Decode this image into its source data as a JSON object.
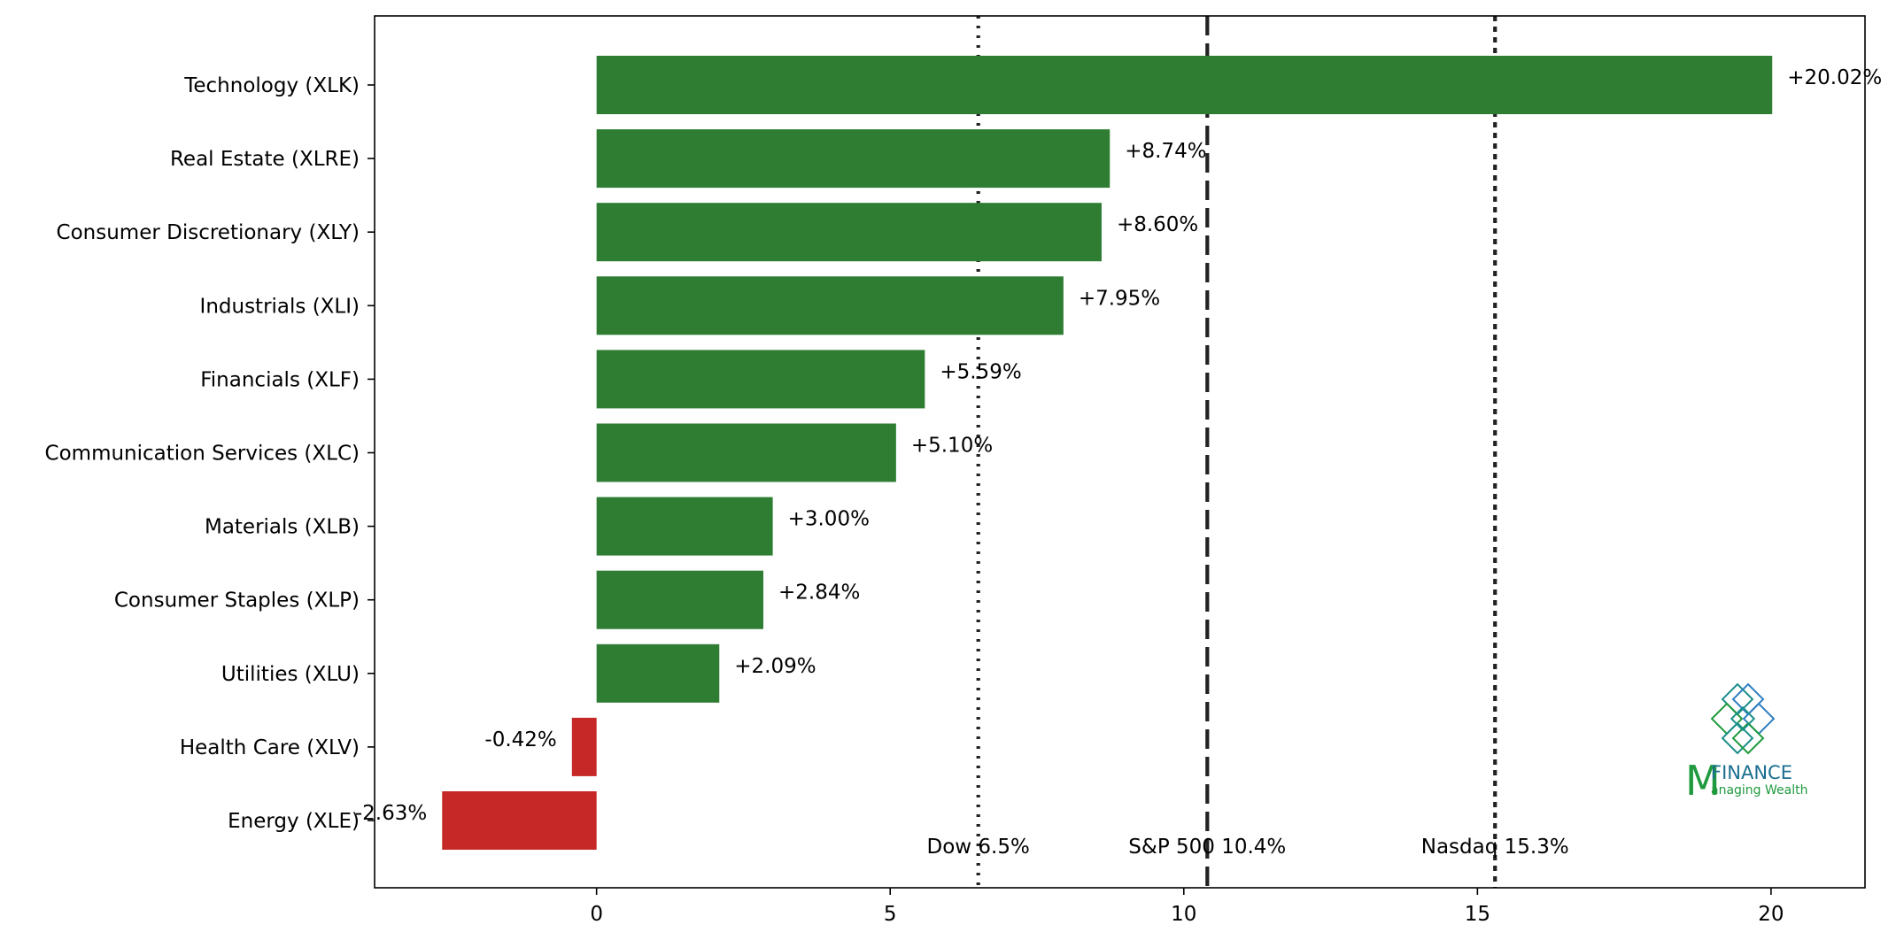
{
  "chart_data": {
    "type": "bar",
    "orientation": "horizontal",
    "categories": [
      "Technology (XLK)",
      "Real Estate (XLRE)",
      "Consumer Discretionary (XLY)",
      "Industrials (XLI)",
      "Financials (XLF)",
      "Communication Services (XLC)",
      "Materials (XLB)",
      "Consumer Staples (XLP)",
      "Utilities (XLU)",
      "Health Care (XLV)",
      "Energy (XLE)"
    ],
    "values": [
      20.02,
      8.74,
      8.6,
      7.95,
      5.59,
      5.1,
      3.0,
      2.84,
      2.09,
      -0.42,
      -2.63
    ],
    "data_labels": [
      "+20.02%",
      "+8.74%",
      "+8.60%",
      "+7.95%",
      "+5.59%",
      "+5.10%",
      "+3.00%",
      "+2.84%",
      "+2.09%",
      "-0.42%",
      "-2.63%"
    ],
    "xlim": [
      -3.78,
      21.6
    ],
    "xticks": [
      0,
      5,
      10,
      15,
      20
    ],
    "grid": false,
    "colors": {
      "positive": "#2e7d32",
      "negative": "#c62828",
      "reference_line": "#222222"
    },
    "reference_lines": [
      {
        "label": "Dow 6.5%",
        "value": 6.5,
        "style": "dotted"
      },
      {
        "label": "S&P 500 10.4%",
        "value": 10.4,
        "style": "dashed"
      },
      {
        "label": "Nasdaq 15.3%",
        "value": 15.3,
        "style": "short-dashed"
      }
    ]
  },
  "logo": {
    "icon": "endless-knot-icon",
    "letter": "M",
    "name": "FINANCE",
    "tagline": "anaging Wealth",
    "colors": {
      "green": "#1f9a3e",
      "blue": "#2f7fc1",
      "teal": "#1b8f8a"
    }
  }
}
